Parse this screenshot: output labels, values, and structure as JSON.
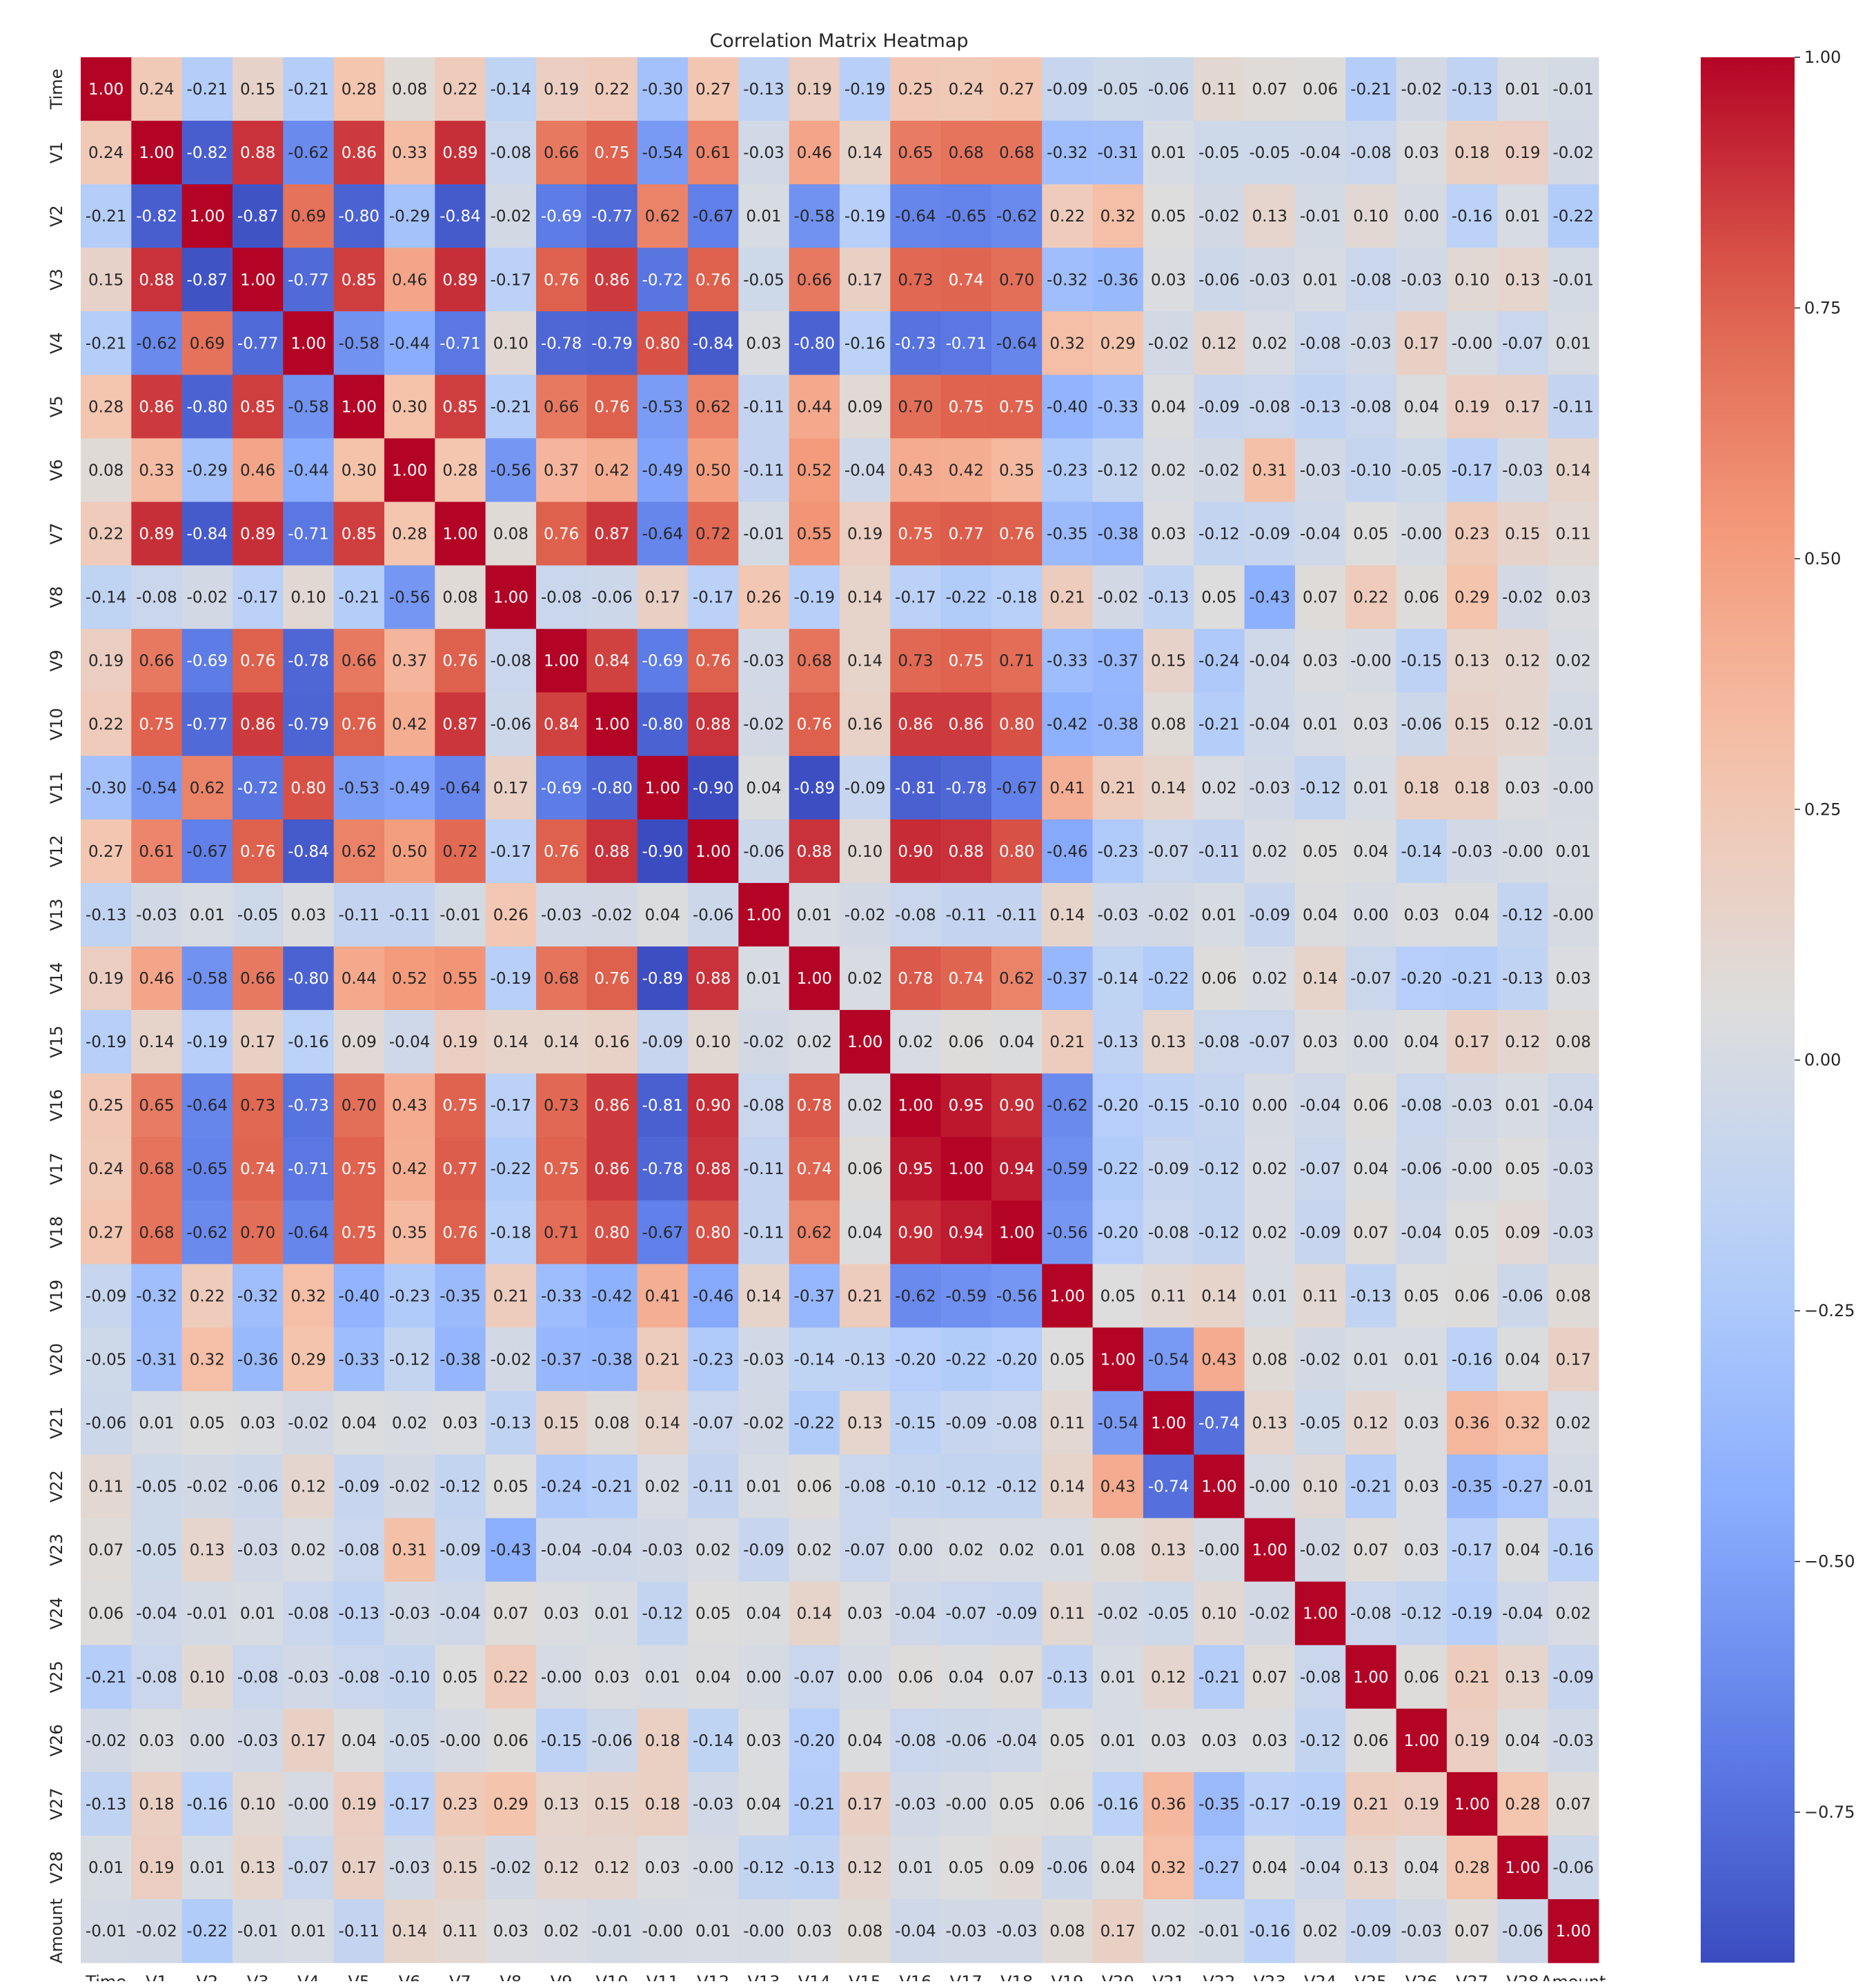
{
  "chart_data": {
    "type": "heatmap",
    "title": "Correlation Matrix Heatmap",
    "xlabel": "",
    "ylabel": "",
    "labels": [
      "Time",
      "V1",
      "V2",
      "V3",
      "V4",
      "V5",
      "V6",
      "V7",
      "V8",
      "V9",
      "V10",
      "V11",
      "V12",
      "V13",
      "V14",
      "V15",
      "V16",
      "V17",
      "V18",
      "V19",
      "V20",
      "V21",
      "V22",
      "V23",
      "V24",
      "V25",
      "V26",
      "V27",
      "V28",
      "Amount"
    ],
    "colormap": "coolwarm",
    "vmin": -0.9,
    "vmax": 1.0,
    "colorbar_ticks": [
      "1.00",
      "0.75",
      "0.50",
      "0.25",
      "0.00",
      "−0.25",
      "−0.50",
      "−0.75"
    ],
    "colorbar_tick_values": [
      1.0,
      0.75,
      0.5,
      0.25,
      0.0,
      -0.25,
      -0.5,
      -0.75
    ],
    "matrix": [
      [
        "1.00",
        "0.24",
        "-0.21",
        "0.15",
        "-0.21",
        "0.28",
        "0.08",
        "0.22",
        "-0.14",
        "0.19",
        "0.22",
        "-0.30",
        "0.27",
        "-0.13",
        "0.19",
        "-0.19",
        "0.25",
        "0.24",
        "0.27",
        "-0.09",
        "-0.05",
        "-0.06",
        "0.11",
        "0.07",
        "0.06",
        "-0.21",
        "-0.02",
        "-0.13",
        "0.01",
        "-0.01"
      ],
      [
        "0.24",
        "1.00",
        "-0.82",
        "0.88",
        "-0.62",
        "0.86",
        "0.33",
        "0.89",
        "-0.08",
        "0.66",
        "0.75",
        "-0.54",
        "0.61",
        "-0.03",
        "0.46",
        "0.14",
        "0.65",
        "0.68",
        "0.68",
        "-0.32",
        "-0.31",
        "0.01",
        "-0.05",
        "-0.05",
        "-0.04",
        "-0.08",
        "0.03",
        "0.18",
        "0.19",
        "-0.02"
      ],
      [
        "-0.21",
        "-0.82",
        "1.00",
        "-0.87",
        "0.69",
        "-0.80",
        "-0.29",
        "-0.84",
        "-0.02",
        "-0.69",
        "-0.77",
        "0.62",
        "-0.67",
        "0.01",
        "-0.58",
        "-0.19",
        "-0.64",
        "-0.65",
        "-0.62",
        "0.22",
        "0.32",
        "0.05",
        "-0.02",
        "0.13",
        "-0.01",
        "0.10",
        "0.00",
        "-0.16",
        "0.01",
        "-0.22"
      ],
      [
        "0.15",
        "0.88",
        "-0.87",
        "1.00",
        "-0.77",
        "0.85",
        "0.46",
        "0.89",
        "-0.17",
        "0.76",
        "0.86",
        "-0.72",
        "0.76",
        "-0.05",
        "0.66",
        "0.17",
        "0.73",
        "0.74",
        "0.70",
        "-0.32",
        "-0.36",
        "0.03",
        "-0.06",
        "-0.03",
        "0.01",
        "-0.08",
        "-0.03",
        "0.10",
        "0.13",
        "-0.01"
      ],
      [
        "-0.21",
        "-0.62",
        "0.69",
        "-0.77",
        "1.00",
        "-0.58",
        "-0.44",
        "-0.71",
        "0.10",
        "-0.78",
        "-0.79",
        "0.80",
        "-0.84",
        "0.03",
        "-0.80",
        "-0.16",
        "-0.73",
        "-0.71",
        "-0.64",
        "0.32",
        "0.29",
        "-0.02",
        "0.12",
        "0.02",
        "-0.08",
        "-0.03",
        "0.17",
        "-0.00",
        "-0.07",
        "0.01"
      ],
      [
        "0.28",
        "0.86",
        "-0.80",
        "0.85",
        "-0.58",
        "1.00",
        "0.30",
        "0.85",
        "-0.21",
        "0.66",
        "0.76",
        "-0.53",
        "0.62",
        "-0.11",
        "0.44",
        "0.09",
        "0.70",
        "0.75",
        "0.75",
        "-0.40",
        "-0.33",
        "0.04",
        "-0.09",
        "-0.08",
        "-0.13",
        "-0.08",
        "0.04",
        "0.19",
        "0.17",
        "-0.11"
      ],
      [
        "0.08",
        "0.33",
        "-0.29",
        "0.46",
        "-0.44",
        "0.30",
        "1.00",
        "0.28",
        "-0.56",
        "0.37",
        "0.42",
        "-0.49",
        "0.50",
        "-0.11",
        "0.52",
        "-0.04",
        "0.43",
        "0.42",
        "0.35",
        "-0.23",
        "-0.12",
        "0.02",
        "-0.02",
        "0.31",
        "-0.03",
        "-0.10",
        "-0.05",
        "-0.17",
        "-0.03",
        "0.14"
      ],
      [
        "0.22",
        "0.89",
        "-0.84",
        "0.89",
        "-0.71",
        "0.85",
        "0.28",
        "1.00",
        "0.08",
        "0.76",
        "0.87",
        "-0.64",
        "0.72",
        "-0.01",
        "0.55",
        "0.19",
        "0.75",
        "0.77",
        "0.76",
        "-0.35",
        "-0.38",
        "0.03",
        "-0.12",
        "-0.09",
        "-0.04",
        "0.05",
        "-0.00",
        "0.23",
        "0.15",
        "0.11"
      ],
      [
        "-0.14",
        "-0.08",
        "-0.02",
        "-0.17",
        "0.10",
        "-0.21",
        "-0.56",
        "0.08",
        "1.00",
        "-0.08",
        "-0.06",
        "0.17",
        "-0.17",
        "0.26",
        "-0.19",
        "0.14",
        "-0.17",
        "-0.22",
        "-0.18",
        "0.21",
        "-0.02",
        "-0.13",
        "0.05",
        "-0.43",
        "0.07",
        "0.22",
        "0.06",
        "0.29",
        "-0.02",
        "0.03"
      ],
      [
        "0.19",
        "0.66",
        "-0.69",
        "0.76",
        "-0.78",
        "0.66",
        "0.37",
        "0.76",
        "-0.08",
        "1.00",
        "0.84",
        "-0.69",
        "0.76",
        "-0.03",
        "0.68",
        "0.14",
        "0.73",
        "0.75",
        "0.71",
        "-0.33",
        "-0.37",
        "0.15",
        "-0.24",
        "-0.04",
        "0.03",
        "-0.00",
        "-0.15",
        "0.13",
        "0.12",
        "0.02"
      ],
      [
        "0.22",
        "0.75",
        "-0.77",
        "0.86",
        "-0.79",
        "0.76",
        "0.42",
        "0.87",
        "-0.06",
        "0.84",
        "1.00",
        "-0.80",
        "0.88",
        "-0.02",
        "0.76",
        "0.16",
        "0.86",
        "0.86",
        "0.80",
        "-0.42",
        "-0.38",
        "0.08",
        "-0.21",
        "-0.04",
        "0.01",
        "0.03",
        "-0.06",
        "0.15",
        "0.12",
        "-0.01"
      ],
      [
        "-0.30",
        "-0.54",
        "0.62",
        "-0.72",
        "0.80",
        "-0.53",
        "-0.49",
        "-0.64",
        "0.17",
        "-0.69",
        "-0.80",
        "1.00",
        "-0.90",
        "0.04",
        "-0.89",
        "-0.09",
        "-0.81",
        "-0.78",
        "-0.67",
        "0.41",
        "0.21",
        "0.14",
        "0.02",
        "-0.03",
        "-0.12",
        "0.01",
        "0.18",
        "0.18",
        "0.03",
        "-0.00"
      ],
      [
        "0.27",
        "0.61",
        "-0.67",
        "0.76",
        "-0.84",
        "0.62",
        "0.50",
        "0.72",
        "-0.17",
        "0.76",
        "0.88",
        "-0.90",
        "1.00",
        "-0.06",
        "0.88",
        "0.10",
        "0.90",
        "0.88",
        "0.80",
        "-0.46",
        "-0.23",
        "-0.07",
        "-0.11",
        "0.02",
        "0.05",
        "0.04",
        "-0.14",
        "-0.03",
        "-0.00",
        "0.01"
      ],
      [
        "-0.13",
        "-0.03",
        "0.01",
        "-0.05",
        "0.03",
        "-0.11",
        "-0.11",
        "-0.01",
        "0.26",
        "-0.03",
        "-0.02",
        "0.04",
        "-0.06",
        "1.00",
        "0.01",
        "-0.02",
        "-0.08",
        "-0.11",
        "-0.11",
        "0.14",
        "-0.03",
        "-0.02",
        "0.01",
        "-0.09",
        "0.04",
        "0.00",
        "0.03",
        "0.04",
        "-0.12",
        "-0.00"
      ],
      [
        "0.19",
        "0.46",
        "-0.58",
        "0.66",
        "-0.80",
        "0.44",
        "0.52",
        "0.55",
        "-0.19",
        "0.68",
        "0.76",
        "-0.89",
        "0.88",
        "0.01",
        "1.00",
        "0.02",
        "0.78",
        "0.74",
        "0.62",
        "-0.37",
        "-0.14",
        "-0.22",
        "0.06",
        "0.02",
        "0.14",
        "-0.07",
        "-0.20",
        "-0.21",
        "-0.13",
        "0.03"
      ],
      [
        "-0.19",
        "0.14",
        "-0.19",
        "0.17",
        "-0.16",
        "0.09",
        "-0.04",
        "0.19",
        "0.14",
        "0.14",
        "0.16",
        "-0.09",
        "0.10",
        "-0.02",
        "0.02",
        "1.00",
        "0.02",
        "0.06",
        "0.04",
        "0.21",
        "-0.13",
        "0.13",
        "-0.08",
        "-0.07",
        "0.03",
        "0.00",
        "0.04",
        "0.17",
        "0.12",
        "0.08"
      ],
      [
        "0.25",
        "0.65",
        "-0.64",
        "0.73",
        "-0.73",
        "0.70",
        "0.43",
        "0.75",
        "-0.17",
        "0.73",
        "0.86",
        "-0.81",
        "0.90",
        "-0.08",
        "0.78",
        "0.02",
        "1.00",
        "0.95",
        "0.90",
        "-0.62",
        "-0.20",
        "-0.15",
        "-0.10",
        "0.00",
        "-0.04",
        "0.06",
        "-0.08",
        "-0.03",
        "0.01",
        "-0.04"
      ],
      [
        "0.24",
        "0.68",
        "-0.65",
        "0.74",
        "-0.71",
        "0.75",
        "0.42",
        "0.77",
        "-0.22",
        "0.75",
        "0.86",
        "-0.78",
        "0.88",
        "-0.11",
        "0.74",
        "0.06",
        "0.95",
        "1.00",
        "0.94",
        "-0.59",
        "-0.22",
        "-0.09",
        "-0.12",
        "0.02",
        "-0.07",
        "0.04",
        "-0.06",
        "-0.00",
        "0.05",
        "-0.03"
      ],
      [
        "0.27",
        "0.68",
        "-0.62",
        "0.70",
        "-0.64",
        "0.75",
        "0.35",
        "0.76",
        "-0.18",
        "0.71",
        "0.80",
        "-0.67",
        "0.80",
        "-0.11",
        "0.62",
        "0.04",
        "0.90",
        "0.94",
        "1.00",
        "-0.56",
        "-0.20",
        "-0.08",
        "-0.12",
        "0.02",
        "-0.09",
        "0.07",
        "-0.04",
        "0.05",
        "0.09",
        "-0.03"
      ],
      [
        "-0.09",
        "-0.32",
        "0.22",
        "-0.32",
        "0.32",
        "-0.40",
        "-0.23",
        "-0.35",
        "0.21",
        "-0.33",
        "-0.42",
        "0.41",
        "-0.46",
        "0.14",
        "-0.37",
        "0.21",
        "-0.62",
        "-0.59",
        "-0.56",
        "1.00",
        "0.05",
        "0.11",
        "0.14",
        "0.01",
        "0.11",
        "-0.13",
        "0.05",
        "0.06",
        "-0.06",
        "0.08"
      ],
      [
        "-0.05",
        "-0.31",
        "0.32",
        "-0.36",
        "0.29",
        "-0.33",
        "-0.12",
        "-0.38",
        "-0.02",
        "-0.37",
        "-0.38",
        "0.21",
        "-0.23",
        "-0.03",
        "-0.14",
        "-0.13",
        "-0.20",
        "-0.22",
        "-0.20",
        "0.05",
        "1.00",
        "-0.54",
        "0.43",
        "0.08",
        "-0.02",
        "0.01",
        "0.01",
        "-0.16",
        "0.04",
        "0.17"
      ],
      [
        "-0.06",
        "0.01",
        "0.05",
        "0.03",
        "-0.02",
        "0.04",
        "0.02",
        "0.03",
        "-0.13",
        "0.15",
        "0.08",
        "0.14",
        "-0.07",
        "-0.02",
        "-0.22",
        "0.13",
        "-0.15",
        "-0.09",
        "-0.08",
        "0.11",
        "-0.54",
        "1.00",
        "-0.74",
        "0.13",
        "-0.05",
        "0.12",
        "0.03",
        "0.36",
        "0.32",
        "0.02"
      ],
      [
        "0.11",
        "-0.05",
        "-0.02",
        "-0.06",
        "0.12",
        "-0.09",
        "-0.02",
        "-0.12",
        "0.05",
        "-0.24",
        "-0.21",
        "0.02",
        "-0.11",
        "0.01",
        "0.06",
        "-0.08",
        "-0.10",
        "-0.12",
        "-0.12",
        "0.14",
        "0.43",
        "-0.74",
        "1.00",
        "-0.00",
        "0.10",
        "-0.21",
        "0.03",
        "-0.35",
        "-0.27",
        "-0.01"
      ],
      [
        "0.07",
        "-0.05",
        "0.13",
        "-0.03",
        "0.02",
        "-0.08",
        "0.31",
        "-0.09",
        "-0.43",
        "-0.04",
        "-0.04",
        "-0.03",
        "0.02",
        "-0.09",
        "0.02",
        "-0.07",
        "0.00",
        "0.02",
        "0.02",
        "0.01",
        "0.08",
        "0.13",
        "-0.00",
        "1.00",
        "-0.02",
        "0.07",
        "0.03",
        "-0.17",
        "0.04",
        "-0.16"
      ],
      [
        "0.06",
        "-0.04",
        "-0.01",
        "0.01",
        "-0.08",
        "-0.13",
        "-0.03",
        "-0.04",
        "0.07",
        "0.03",
        "0.01",
        "-0.12",
        "0.05",
        "0.04",
        "0.14",
        "0.03",
        "-0.04",
        "-0.07",
        "-0.09",
        "0.11",
        "-0.02",
        "-0.05",
        "0.10",
        "-0.02",
        "1.00",
        "-0.08",
        "-0.12",
        "-0.19",
        "-0.04",
        "0.02"
      ],
      [
        "-0.21",
        "-0.08",
        "0.10",
        "-0.08",
        "-0.03",
        "-0.08",
        "-0.10",
        "0.05",
        "0.22",
        "-0.00",
        "0.03",
        "0.01",
        "0.04",
        "0.00",
        "-0.07",
        "0.00",
        "0.06",
        "0.04",
        "0.07",
        "-0.13",
        "0.01",
        "0.12",
        "-0.21",
        "0.07",
        "-0.08",
        "1.00",
        "0.06",
        "0.21",
        "0.13",
        "-0.09"
      ],
      [
        "-0.02",
        "0.03",
        "0.00",
        "-0.03",
        "0.17",
        "0.04",
        "-0.05",
        "-0.00",
        "0.06",
        "-0.15",
        "-0.06",
        "0.18",
        "-0.14",
        "0.03",
        "-0.20",
        "0.04",
        "-0.08",
        "-0.06",
        "-0.04",
        "0.05",
        "0.01",
        "0.03",
        "0.03",
        "0.03",
        "-0.12",
        "0.06",
        "1.00",
        "0.19",
        "0.04",
        "-0.03"
      ],
      [
        "-0.13",
        "0.18",
        "-0.16",
        "0.10",
        "-0.00",
        "0.19",
        "-0.17",
        "0.23",
        "0.29",
        "0.13",
        "0.15",
        "0.18",
        "-0.03",
        "0.04",
        "-0.21",
        "0.17",
        "-0.03",
        "-0.00",
        "0.05",
        "0.06",
        "-0.16",
        "0.36",
        "-0.35",
        "-0.17",
        "-0.19",
        "0.21",
        "0.19",
        "1.00",
        "0.28",
        "0.07"
      ],
      [
        "0.01",
        "0.19",
        "0.01",
        "0.13",
        "-0.07",
        "0.17",
        "-0.03",
        "0.15",
        "-0.02",
        "0.12",
        "0.12",
        "0.03",
        "-0.00",
        "-0.12",
        "-0.13",
        "0.12",
        "0.01",
        "0.05",
        "0.09",
        "-0.06",
        "0.04",
        "0.32",
        "-0.27",
        "0.04",
        "-0.04",
        "0.13",
        "0.04",
        "0.28",
        "1.00",
        "-0.06"
      ],
      [
        "-0.01",
        "-0.02",
        "-0.22",
        "-0.01",
        "0.01",
        "-0.11",
        "0.14",
        "0.11",
        "0.03",
        "0.02",
        "-0.01",
        "-0.00",
        "0.01",
        "-0.00",
        "0.03",
        "0.08",
        "-0.04",
        "-0.03",
        "-0.03",
        "0.08",
        "0.17",
        "0.02",
        "-0.01",
        "-0.16",
        "0.02",
        "-0.09",
        "-0.03",
        "0.07",
        "-0.06",
        "1.00"
      ]
    ]
  }
}
